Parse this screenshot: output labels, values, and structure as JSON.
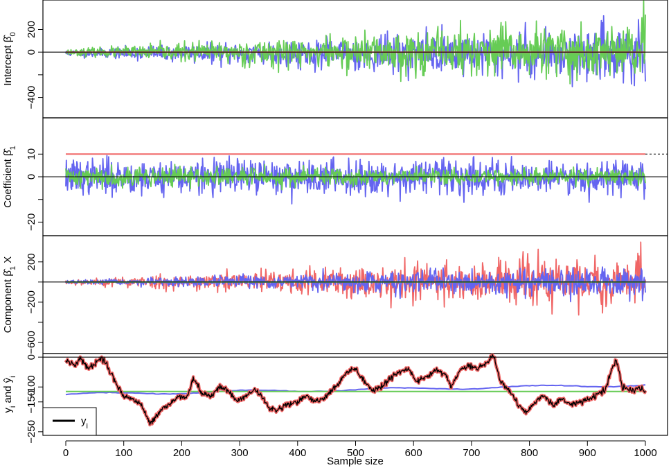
{
  "chart_data": {
    "type": "line",
    "xlabel": "Sample size",
    "x_range": [
      0,
      1000
    ],
    "x_ticks": [
      0,
      100,
      200,
      300,
      400,
      500,
      600,
      700,
      800,
      900,
      1000
    ],
    "colors": {
      "series1": "#6464f0",
      "series2": "#66cc55",
      "series3": "#f06666",
      "observed": "#000000"
    },
    "panels": [
      {
        "ylabel": "Intercept",
        "ylabel_symbol": "β̂",
        "ylabel_subscript": "0",
        "y_range": [
          -580,
          460
        ],
        "y_ticks": [
          -400,
          0,
          200
        ],
        "y_minor_ticks": [
          -200
        ],
        "reference_line": 0,
        "series": [
          {
            "color_key": "series1",
            "kind": "noise",
            "seed": 11,
            "amp_start": 25,
            "amp_end": 230,
            "base": -10
          },
          {
            "color_key": "series2",
            "kind": "noise",
            "seed": 23,
            "amp_start": 22,
            "amp_end": 260,
            "base": 0
          },
          {
            "color_key": "series3",
            "kind": "flat",
            "value": 0
          }
        ]
      },
      {
        "ylabel": "Coefficient",
        "ylabel_symbol": "β̂",
        "ylabel_subscript": "1",
        "y_range": [
          -26,
          26
        ],
        "y_ticks": [
          -20,
          0,
          10
        ],
        "y_minor_ticks": [
          -10
        ],
        "reference_line": 0,
        "dashed_line": 10,
        "series": [
          {
            "color_key": "series1",
            "kind": "noise",
            "seed": 37,
            "amp_start": 7,
            "amp_end": 7,
            "base": 0
          },
          {
            "color_key": "series2",
            "kind": "noise",
            "seed": 41,
            "amp_start": 4,
            "amp_end": 3,
            "base": 0
          },
          {
            "color_key": "series3",
            "kind": "flat",
            "value": 10
          }
        ]
      },
      {
        "ylabel": "Component",
        "ylabel_symbol": "β̂",
        "ylabel_subscript": "1",
        "ylabel_suffix": "X",
        "y_range": [
          -710,
          460
        ],
        "y_ticks": [
          -600,
          -200,
          200
        ],
        "y_minor_ticks": [
          -400,
          0
        ],
        "reference_line": 0,
        "series": [
          {
            "color_key": "series3",
            "kind": "noise",
            "seed": 53,
            "amp_start": 20,
            "amp_end": 260,
            "base": 0
          },
          {
            "color_key": "series1",
            "kind": "noise",
            "seed": 67,
            "amp_start": 15,
            "amp_end": 140,
            "base": 0
          },
          {
            "color_key": "series2",
            "kind": "flat",
            "value": 0
          }
        ]
      },
      {
        "ylabel": "y",
        "ylabel_subscript": "i",
        "ylabel_mid": " and ",
        "ylabel_symbol2": "ŷ",
        "ylabel_subscript2": "i",
        "y_range": [
          -262,
          12
        ],
        "y_ticks": [
          -250,
          -150,
          -100,
          0
        ],
        "reference_line": 0,
        "legend": {
          "label": "y",
          "subscript": "i",
          "position": "bottom-left"
        },
        "series": [
          {
            "color_key": "series1",
            "kind": "trend",
            "start": -125,
            "end": -93
          },
          {
            "color_key": "series2",
            "kind": "flat",
            "value": -115
          },
          {
            "color_key": "observed",
            "kind": "walk",
            "knots": [
              [
                0,
                -10
              ],
              [
                15,
                -30
              ],
              [
                25,
                -5
              ],
              [
                40,
                -40
              ],
              [
                55,
                -10
              ],
              [
                65,
                -5
              ],
              [
                75,
                -40
              ],
              [
                90,
                -100
              ],
              [
                100,
                -130
              ],
              [
                115,
                -140
              ],
              [
                130,
                -160
              ],
              [
                145,
                -220
              ],
              [
                160,
                -190
              ],
              [
                175,
                -160
              ],
              [
                190,
                -140
              ],
              [
                210,
                -130
              ],
              [
                220,
                -70
              ],
              [
                235,
                -120
              ],
              [
                250,
                -130
              ],
              [
                265,
                -100
              ],
              [
                280,
                -110
              ],
              [
                295,
                -150
              ],
              [
                310,
                -130
              ],
              [
                325,
                -110
              ],
              [
                335,
                -120
              ],
              [
                350,
                -170
              ],
              [
                365,
                -180
              ],
              [
                380,
                -160
              ],
              [
                400,
                -150
              ],
              [
                415,
                -130
              ],
              [
                430,
                -150
              ],
              [
                445,
                -140
              ],
              [
                455,
                -120
              ],
              [
                470,
                -90
              ],
              [
                485,
                -50
              ],
              [
                500,
                -40
              ],
              [
                515,
                -80
              ],
              [
                530,
                -110
              ],
              [
                545,
                -100
              ],
              [
                560,
                -70
              ],
              [
                575,
                -50
              ],
              [
                590,
                -40
              ],
              [
                605,
                -80
              ],
              [
                620,
                -70
              ],
              [
                640,
                -40
              ],
              [
                655,
                -60
              ],
              [
                665,
                -100
              ],
              [
                680,
                -40
              ],
              [
                695,
                -30
              ],
              [
                710,
                -40
              ],
              [
                725,
                -20
              ],
              [
                738,
                5
              ],
              [
                750,
                -80
              ],
              [
                765,
                -110
              ],
              [
                780,
                -160
              ],
              [
                795,
                -185
              ],
              [
                810,
                -150
              ],
              [
                825,
                -130
              ],
              [
                840,
                -160
              ],
              [
                855,
                -140
              ],
              [
                870,
                -160
              ],
              [
                885,
                -150
              ],
              [
                900,
                -145
              ],
              [
                915,
                -130
              ],
              [
                930,
                -110
              ],
              [
                942,
                -40
              ],
              [
                950,
                -10
              ],
              [
                960,
                -100
              ],
              [
                975,
                -110
              ],
              [
                990,
                -105
              ],
              [
                1000,
                -120
              ]
            ],
            "jitter": 8,
            "seed": 79
          }
        ]
      }
    ]
  }
}
